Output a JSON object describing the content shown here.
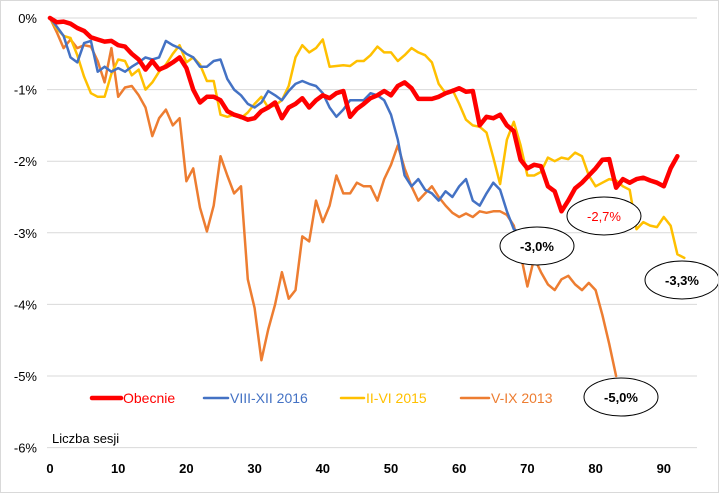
{
  "chart_data": {
    "type": "line",
    "title": "",
    "xlabel": "Liczba sesji",
    "ylabel": "",
    "xlim": [
      0,
      95
    ],
    "ylim": [
      -6,
      0
    ],
    "x_ticks": [
      0,
      10,
      20,
      30,
      40,
      50,
      60,
      70,
      80,
      90
    ],
    "x_tick_labels": [
      "0",
      "10",
      "20",
      "30",
      "40",
      "50",
      "60",
      "70",
      "80",
      "90"
    ],
    "y_ticks": [
      0,
      -1,
      -2,
      -3,
      -4,
      -5,
      -6
    ],
    "y_tick_labels": [
      "0%",
      "-1%",
      "-2%",
      "-3%",
      "-4%",
      "-5%",
      "-6%"
    ],
    "grid": true,
    "legend_position": "bottom-inside",
    "series": [
      {
        "name": "Obecnie",
        "color": "#ff0000",
        "width": "thick",
        "values": [
          0,
          -0.06,
          -0.05,
          -0.08,
          -0.14,
          -0.18,
          -0.27,
          -0.3,
          -0.33,
          -0.32,
          -0.38,
          -0.4,
          -0.5,
          -0.58,
          -0.72,
          -0.6,
          -0.72,
          -0.68,
          -0.62,
          -0.55,
          -0.7,
          -1.0,
          -1.18,
          -1.1,
          -1.1,
          -1.15,
          -1.3,
          -1.35,
          -1.38,
          -1.42,
          -1.4,
          -1.3,
          -1.25,
          -1.18,
          -1.4,
          -1.25,
          -1.2,
          -1.12,
          -1.25,
          -1.15,
          -1.08,
          -1.12,
          -1.05,
          -1.02,
          -1.38,
          -1.27,
          -1.2,
          -1.12,
          -1.08,
          -1.02,
          -1.08,
          -0.95,
          -0.9,
          -0.98,
          -1.13,
          -1.13,
          -1.13,
          -1.1,
          -1.05,
          -1.02,
          -0.98,
          -1.03,
          -1.02,
          -1.5,
          -1.38,
          -1.4,
          -1.35,
          -1.5,
          -1.58,
          -1.98,
          -2.1,
          -2.05,
          -2.07,
          -2.35,
          -2.42,
          -2.7,
          -2.55,
          -2.38,
          -2.3,
          -2.2,
          -2.1,
          -1.98,
          -1.97,
          -2.37,
          -2.25,
          -2.3,
          -2.25,
          -2.23,
          -2.27,
          -2.3,
          -2.35,
          -2.1,
          -1.93
        ]
      },
      {
        "name": "VIII-XII 2016",
        "color": "#4472c4",
        "width": "normal",
        "values": [
          0,
          -0.12,
          -0.25,
          -0.55,
          -0.62,
          -0.35,
          -0.32,
          -0.75,
          -0.68,
          -0.75,
          -0.7,
          -0.75,
          -0.68,
          -0.62,
          -0.55,
          -0.58,
          -0.55,
          -0.32,
          -0.38,
          -0.42,
          -0.5,
          -0.55,
          -0.68,
          -0.68,
          -0.6,
          -0.58,
          -0.85,
          -1.0,
          -1.08,
          -1.2,
          -1.25,
          -1.18,
          -1.02,
          -1.08,
          -1.15,
          -1.02,
          -0.92,
          -0.88,
          -0.92,
          -0.95,
          -1.05,
          -1.25,
          -1.38,
          -1.28,
          -1.15,
          -1.15,
          -1.15,
          -1.05,
          -1.08,
          -1.15,
          -1.35,
          -1.7,
          -2.2,
          -2.35,
          -2.25,
          -2.4,
          -2.45,
          -2.55,
          -2.42,
          -2.5,
          -2.35,
          -2.25,
          -2.55,
          -2.62,
          -2.45,
          -2.3,
          -2.4,
          -2.7,
          -2.95,
          -3.0
        ]
      },
      {
        "name": "II-VI 2015",
        "color": "#ffc000",
        "width": "normal",
        "values": [
          0,
          -0.15,
          -0.25,
          -0.28,
          -0.52,
          -0.82,
          -1.05,
          -1.1,
          -1.1,
          -0.78,
          -0.58,
          -0.6,
          -0.8,
          -0.72,
          -1.0,
          -0.9,
          -0.75,
          -0.65,
          -0.5,
          -0.38,
          -0.62,
          -0.55,
          -0.65,
          -0.88,
          -0.88,
          -1.35,
          -1.38,
          -1.35,
          -1.4,
          -1.32,
          -1.2,
          -1.1,
          -1.25,
          -1.22,
          -1.15,
          -0.95,
          -0.55,
          -0.38,
          -0.48,
          -0.42,
          -0.3,
          -0.68,
          -0.67,
          -0.66,
          -0.67,
          -0.6,
          -0.6,
          -0.52,
          -0.4,
          -0.48,
          -0.48,
          -0.6,
          -0.52,
          -0.42,
          -0.48,
          -0.52,
          -0.62,
          -0.92,
          -1.05,
          -1.0,
          -1.2,
          -1.42,
          -1.5,
          -1.52,
          -1.6,
          -1.95,
          -2.32,
          -1.7,
          -1.45,
          -1.78,
          -2.2,
          -2.2,
          -2.15,
          -1.95,
          -2.0,
          -1.95,
          -1.97,
          -1.88,
          -1.93,
          -2.2,
          -2.35,
          -2.3,
          -2.25,
          -2.27,
          -2.35,
          -2.4,
          -2.95,
          -2.85,
          -2.9,
          -2.92,
          -2.78,
          -2.9,
          -3.3,
          -3.35
        ]
      },
      {
        "name": "V-IX 2013",
        "color": "#ed7d31",
        "width": "normal",
        "values": [
          0,
          -0.2,
          -0.42,
          -0.3,
          -0.42,
          -0.38,
          -0.4,
          -0.6,
          -0.9,
          -0.42,
          -1.1,
          -0.97,
          -0.95,
          -1.08,
          -1.25,
          -1.65,
          -1.4,
          -1.28,
          -1.5,
          -1.4,
          -2.28,
          -2.1,
          -2.65,
          -2.98,
          -2.62,
          -1.93,
          -2.2,
          -2.45,
          -2.35,
          -3.65,
          -4.05,
          -4.78,
          -4.35,
          -4.0,
          -3.55,
          -3.92,
          -3.8,
          -3.05,
          -3.12,
          -2.55,
          -2.85,
          -2.62,
          -2.2,
          -2.45,
          -2.45,
          -2.3,
          -2.35,
          -2.35,
          -2.55,
          -2.25,
          -2.05,
          -1.78,
          -2.1,
          -2.35,
          -2.55,
          -2.45,
          -2.35,
          -2.5,
          -2.62,
          -2.72,
          -2.78,
          -2.73,
          -2.78,
          -2.7,
          -2.72,
          -2.7,
          -2.7,
          -2.75,
          -2.9,
          -3.3,
          -3.75,
          -3.35,
          -3.55,
          -3.72,
          -3.8,
          -3.65,
          -3.6,
          -3.72,
          -3.8,
          -3.7,
          -3.8,
          -4.15,
          -4.55,
          -5.0
        ]
      }
    ],
    "annotations": [
      {
        "text": "-2,7%",
        "series": "Obecnie",
        "color": "#ff0000",
        "anchor_x": 75,
        "anchor_y": -2.7
      },
      {
        "text": "-3,0%",
        "series": "VIII-XII 2016",
        "color": "#000000",
        "anchor_x": 69,
        "anchor_y": -3.0
      },
      {
        "text": "-3,3%",
        "series": "II-VI 2015",
        "color": "#000000",
        "anchor_x": 93,
        "anchor_y": -3.35
      },
      {
        "text": "-5,0%",
        "series": "V-IX 2013",
        "color": "#000000",
        "anchor_x": 83,
        "anchor_y": -5.0
      }
    ]
  }
}
